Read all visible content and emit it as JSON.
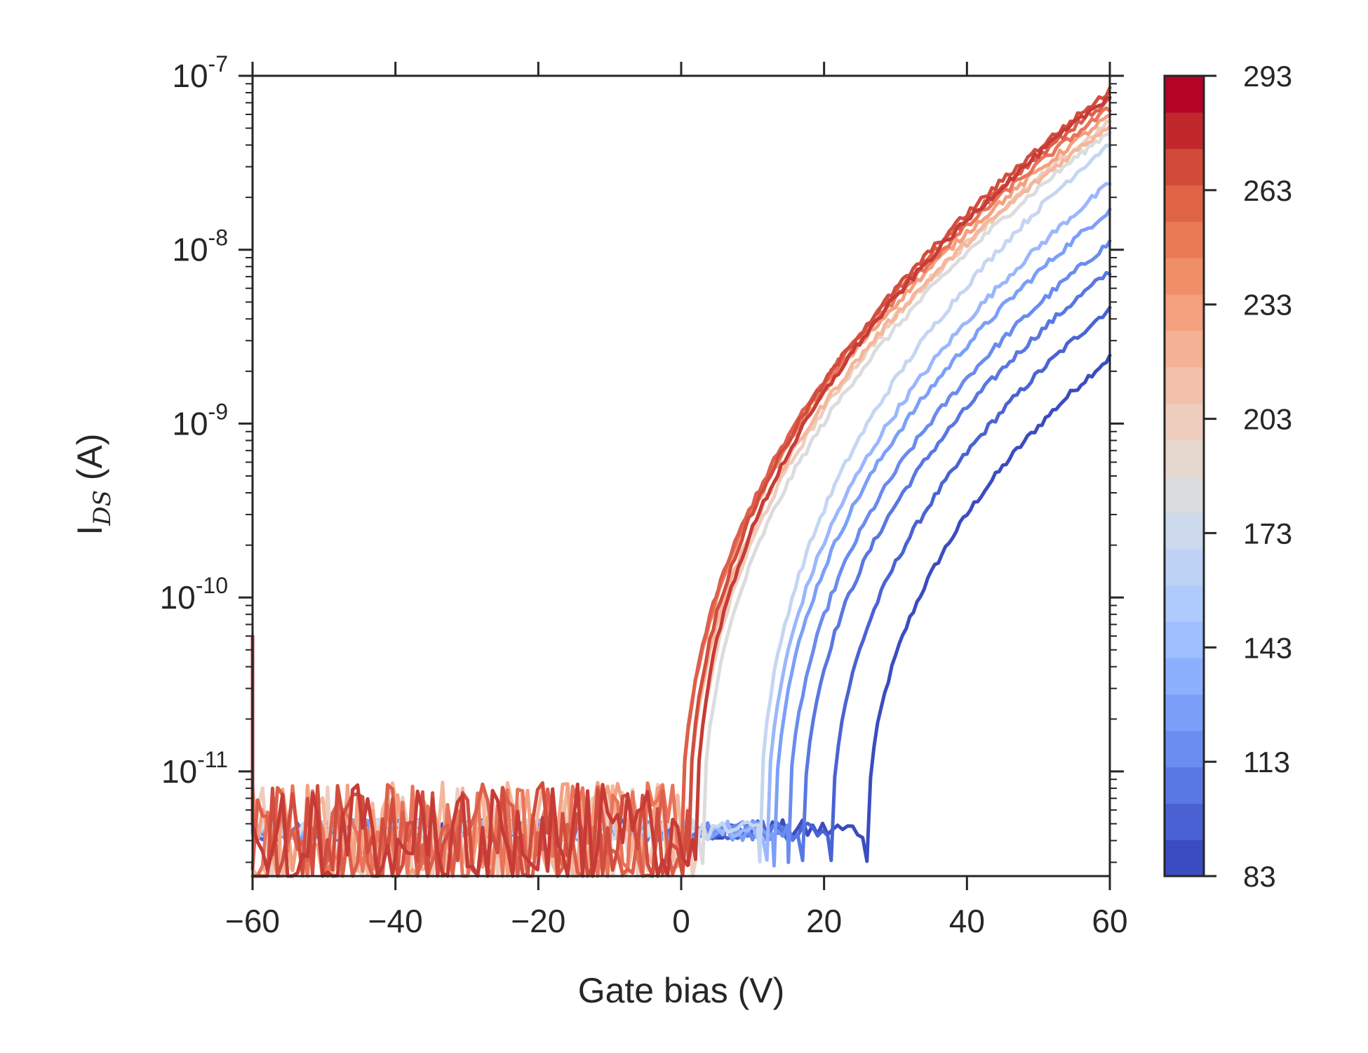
{
  "chart_data": {
    "type": "line",
    "xlabel": "Gate bias (V)",
    "ylabel": {
      "main": "I",
      "sub": "DS",
      "unit": " (A)"
    },
    "xlim": [
      -60,
      60
    ],
    "ylim": [
      2.5e-12,
      1e-07
    ],
    "y_scale": "log",
    "grid": false,
    "x_ticks": [
      "−60",
      "−40",
      "−20",
      "0",
      "20",
      "40",
      "60"
    ],
    "x_tick_values": [
      -60,
      -40,
      -20,
      0,
      20,
      40,
      60
    ],
    "y_ticks": [
      {
        "value": 1e-07,
        "base": "10",
        "exp": "-7"
      },
      {
        "value": 1e-08,
        "base": "10",
        "exp": "-8"
      },
      {
        "value": 1e-09,
        "base": "10",
        "exp": "-9"
      },
      {
        "value": 1e-10,
        "base": "10",
        "exp": "-10"
      },
      {
        "value": 1e-11,
        "base": "10",
        "exp": "-11"
      }
    ],
    "colorbar": {
      "min": 83,
      "max": 293,
      "ticks": [
        "83",
        "113",
        "143",
        "173",
        "203",
        "233",
        "263",
        "293"
      ],
      "tick_values": [
        83,
        113,
        143,
        173,
        203,
        233,
        263,
        293
      ],
      "colors": [
        "#3b4cc0",
        "#4961d2",
        "#5a78e4",
        "#6b8df0",
        "#7b9ff9",
        "#8db0fe",
        "#9ebeff",
        "#afcafc",
        "#bed2f6",
        "#cdd9ec",
        "#dbdcde",
        "#e6d7cf",
        "#eecdbf",
        "#f3c0ab",
        "#f5b194",
        "#f4a07e",
        "#f08e68",
        "#e97a55",
        "#de6445",
        "#d14b38",
        "#c0282c",
        "#b40426"
      ]
    },
    "series": [
      {
        "temperature": 83,
        "color": "#3b4cc0",
        "v_on": 26,
        "y_end": 2.4e-09
      },
      {
        "temperature": 98,
        "color": "#4a63d3",
        "v_on": 21,
        "y_end": 4.6e-09
      },
      {
        "temperature": 113,
        "color": "#5977e3",
        "v_on": 17,
        "y_end": 7.5e-09
      },
      {
        "temperature": 128,
        "color": "#6a8bef",
        "v_on": 15,
        "y_end": 1.1e-08
      },
      {
        "temperature": 143,
        "color": "#7b9ff9",
        "v_on": 13,
        "y_end": 1.7e-08
      },
      {
        "temperature": 158,
        "color": "#9ab6fe",
        "v_on": 12,
        "y_end": 2.4e-08
      },
      {
        "temperature": 173,
        "color": "#c5d6f2",
        "v_on": 11,
        "y_end": 4.1e-08
      },
      {
        "temperature": 188,
        "color": "#dbdcde",
        "v_on": 3,
        "y_end": 4.8e-08
      },
      {
        "temperature": 203,
        "color": "#eecdbf",
        "v_on": 2,
        "y_end": 5.4e-08
      },
      {
        "temperature": 218,
        "color": "#f5b69a",
        "v_on": 1,
        "y_end": 5.2e-08
      },
      {
        "temperature": 233,
        "color": "#f4a07e",
        "v_on": 0,
        "y_end": 5.9e-08
      },
      {
        "temperature": 248,
        "color": "#e8745a",
        "v_on": 0,
        "y_end": 6.5e-08
      },
      {
        "temperature": 263,
        "color": "#dd5f4b",
        "v_on": 0,
        "y_end": 7.3e-08
      },
      {
        "temperature": 278,
        "color": "#d24d3e",
        "v_on": 1,
        "y_end": 8.2e-08
      },
      {
        "temperature": 293,
        "color": "#c73b36",
        "v_on": 2,
        "y_end": 7.7e-08
      }
    ]
  }
}
